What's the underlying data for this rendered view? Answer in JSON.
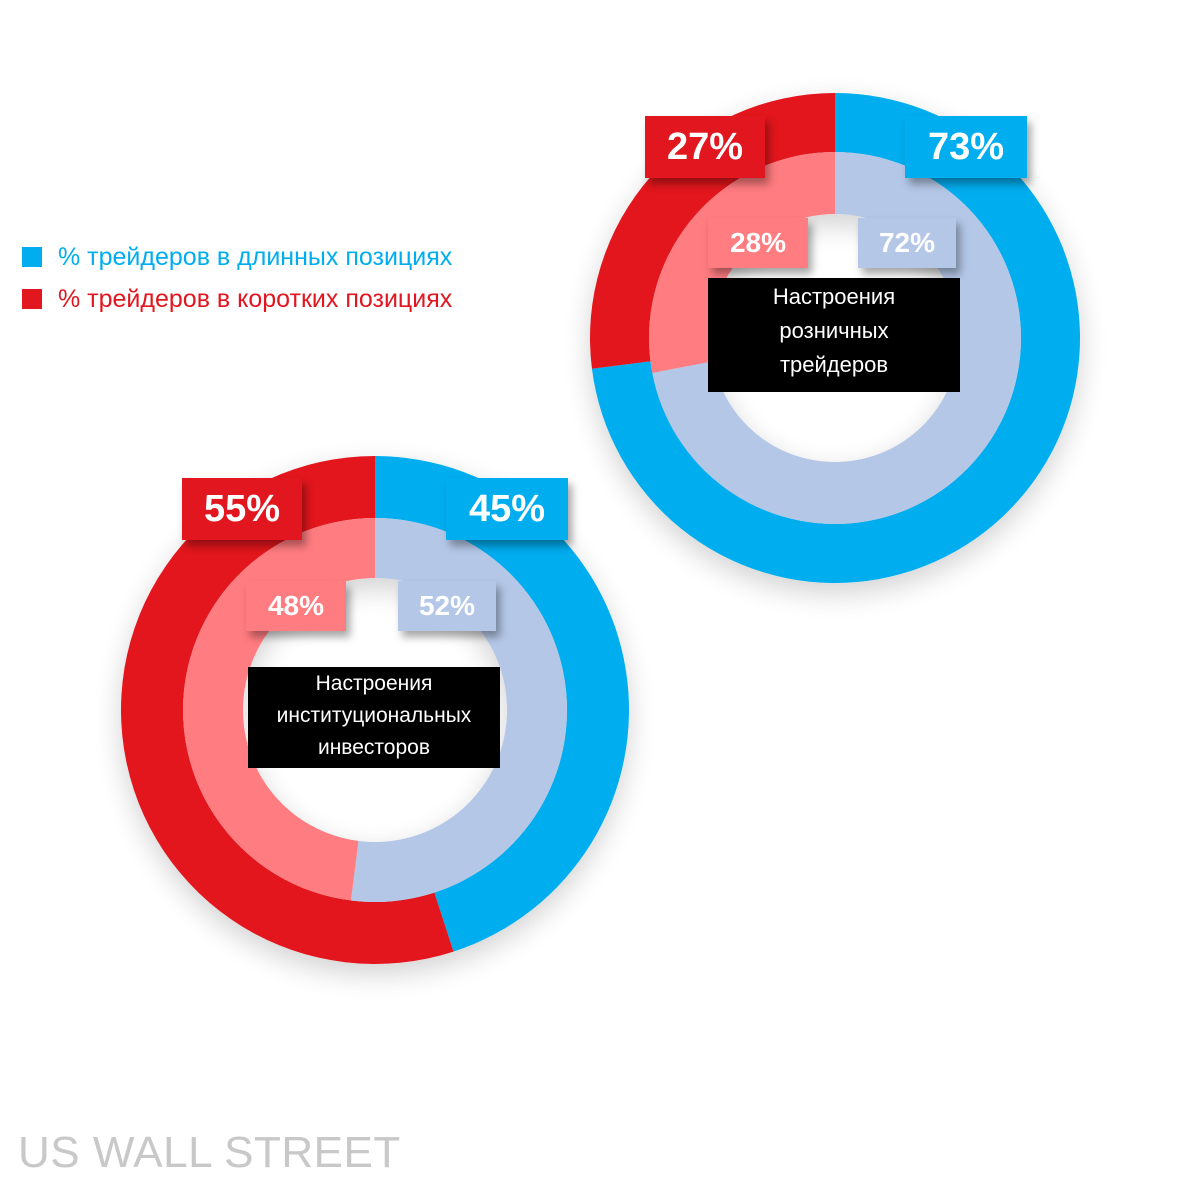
{
  "colors": {
    "long_outer": "#00adef",
    "short_outer": "#e2161f",
    "long_inner": "#b4c7e7",
    "short_inner": "#ff7c80"
  },
  "legend": {
    "long_label": "% трейдеров в длинных позициях",
    "short_label": "% трейдеров в коротких позициях"
  },
  "watermark": "US WALL STREET",
  "chart_data": [
    {
      "type": "donut",
      "title": "Настроения розничных трейдеров",
      "rings": [
        {
          "ring": "outer",
          "long": 73,
          "short": 27,
          "long_label": "73%",
          "short_label": "27%"
        },
        {
          "ring": "inner",
          "long": 72,
          "short": 28,
          "long_label": "72%",
          "short_label": "28%"
        }
      ]
    },
    {
      "type": "donut",
      "title": "Настроения институциональных инвесторов",
      "rings": [
        {
          "ring": "outer",
          "long": 45,
          "short": 55,
          "long_label": "45%",
          "short_label": "55%"
        },
        {
          "ring": "inner",
          "long": 52,
          "short": 48,
          "long_label": "52%",
          "short_label": "48%"
        }
      ]
    }
  ]
}
